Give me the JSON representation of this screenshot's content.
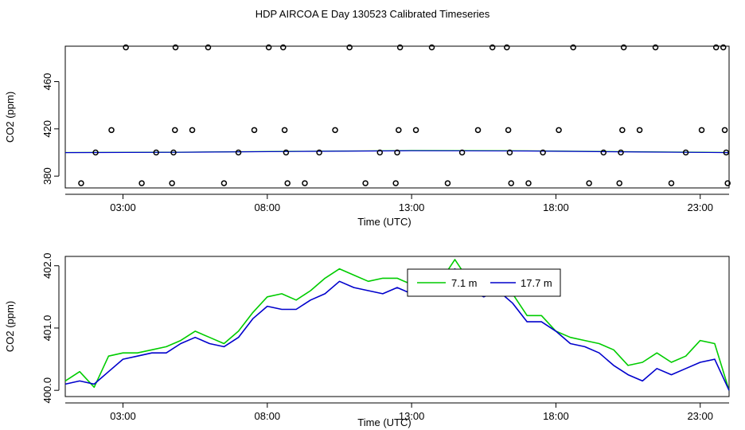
{
  "page": {
    "title": "HDP AIRCOA E  Day 130523  Calibrated Timeseries"
  },
  "colors": {
    "green": "#00cc00",
    "blue": "#0000cc",
    "axis": "#000000",
    "background": "#ffffff"
  },
  "chart_data": [
    {
      "type": "scatter",
      "xlabel": "Time (UTC)",
      "ylabel": "CO2 (ppm)",
      "xlim": [
        1.0,
        24.0
      ],
      "ylim": [
        370,
        490
      ],
      "xticks": [
        3,
        8,
        13,
        18,
        23
      ],
      "xtick_labels": [
        "03:00",
        "08:00",
        "13:00",
        "18:00",
        "23:00"
      ],
      "yticks": [
        380,
        420,
        460
      ],
      "ytick_labels": [
        "380",
        "420",
        "460"
      ],
      "points": [
        {
          "x": 1.55,
          "y": 374
        },
        {
          "x": 2.05,
          "y": 400
        },
        {
          "x": 2.6,
          "y": 419
        },
        {
          "x": 3.1,
          "y": 489
        },
        {
          "x": 3.65,
          "y": 374
        },
        {
          "x": 4.15,
          "y": 400
        },
        {
          "x": 4.7,
          "y": 374
        },
        {
          "x": 4.75,
          "y": 400
        },
        {
          "x": 4.8,
          "y": 419
        },
        {
          "x": 4.82,
          "y": 489
        },
        {
          "x": 5.4,
          "y": 419
        },
        {
          "x": 5.95,
          "y": 489
        },
        {
          "x": 6.5,
          "y": 374
        },
        {
          "x": 7.0,
          "y": 400
        },
        {
          "x": 7.55,
          "y": 419
        },
        {
          "x": 8.05,
          "y": 489
        },
        {
          "x": 8.55,
          "y": 489
        },
        {
          "x": 8.6,
          "y": 419
        },
        {
          "x": 8.65,
          "y": 400
        },
        {
          "x": 8.7,
          "y": 374
        },
        {
          "x": 9.3,
          "y": 374
        },
        {
          "x": 9.8,
          "y": 400
        },
        {
          "x": 10.35,
          "y": 419
        },
        {
          "x": 10.85,
          "y": 489
        },
        {
          "x": 11.4,
          "y": 374
        },
        {
          "x": 11.9,
          "y": 400
        },
        {
          "x": 12.45,
          "y": 374
        },
        {
          "x": 12.5,
          "y": 400
        },
        {
          "x": 12.55,
          "y": 419
        },
        {
          "x": 12.6,
          "y": 489
        },
        {
          "x": 13.15,
          "y": 419
        },
        {
          "x": 13.7,
          "y": 489
        },
        {
          "x": 14.25,
          "y": 374
        },
        {
          "x": 14.75,
          "y": 400
        },
        {
          "x": 15.3,
          "y": 419
        },
        {
          "x": 15.8,
          "y": 489
        },
        {
          "x": 16.3,
          "y": 489
        },
        {
          "x": 16.35,
          "y": 419
        },
        {
          "x": 16.4,
          "y": 400
        },
        {
          "x": 16.45,
          "y": 374
        },
        {
          "x": 17.05,
          "y": 374
        },
        {
          "x": 17.55,
          "y": 400
        },
        {
          "x": 18.1,
          "y": 419
        },
        {
          "x": 18.6,
          "y": 489
        },
        {
          "x": 19.15,
          "y": 374
        },
        {
          "x": 19.65,
          "y": 400
        },
        {
          "x": 20.2,
          "y": 374
        },
        {
          "x": 20.25,
          "y": 400
        },
        {
          "x": 20.3,
          "y": 419
        },
        {
          "x": 20.35,
          "y": 489
        },
        {
          "x": 20.9,
          "y": 419
        },
        {
          "x": 21.45,
          "y": 489
        },
        {
          "x": 22.0,
          "y": 374
        },
        {
          "x": 22.5,
          "y": 400
        },
        {
          "x": 23.05,
          "y": 419
        },
        {
          "x": 23.55,
          "y": 489
        },
        {
          "x": 23.8,
          "y": 489
        },
        {
          "x": 23.85,
          "y": 419
        },
        {
          "x": 23.9,
          "y": 400
        },
        {
          "x": 23.95,
          "y": 374
        }
      ],
      "line_series": [
        {
          "color": "#00cc00",
          "x": [
            1.0,
            5.0,
            9.0,
            13.0,
            17.0,
            21.0,
            24.0
          ],
          "y": [
            400.0,
            400.3,
            401.0,
            401.7,
            401.5,
            400.6,
            400.0
          ]
        },
        {
          "color": "#0000cc",
          "x": [
            1.0,
            5.0,
            9.0,
            13.0,
            17.0,
            21.0,
            24.0
          ],
          "y": [
            399.9,
            400.2,
            400.9,
            401.5,
            401.3,
            400.4,
            399.9
          ]
        }
      ]
    },
    {
      "type": "line",
      "xlabel": "Time (UTC)",
      "ylabel": "CO2 (ppm)",
      "xlim": [
        1.0,
        24.0
      ],
      "ylim": [
        399.9,
        402.15
      ],
      "xticks": [
        3,
        8,
        13,
        18,
        23
      ],
      "xtick_labels": [
        "03:00",
        "08:00",
        "13:00",
        "18:00",
        "23:00"
      ],
      "yticks": [
        400.0,
        401.0,
        402.0
      ],
      "ytick_labels": [
        "400.0",
        "401.0",
        "402.0"
      ],
      "legend": {
        "position": "top-center",
        "entries": [
          {
            "name": "7.1 m",
            "color": "#00cc00"
          },
          {
            "name": "17.7 m",
            "color": "#0000cc"
          }
        ]
      },
      "series": [
        {
          "name": "7.1 m",
          "color": "#00cc00",
          "x": [
            1.0,
            1.5,
            2.0,
            2.5,
            3.0,
            3.5,
            4.0,
            4.5,
            5.0,
            5.5,
            6.0,
            6.5,
            7.0,
            7.5,
            8.0,
            8.5,
            9.0,
            9.5,
            10.0,
            10.5,
            11.0,
            11.5,
            12.0,
            12.5,
            13.0,
            13.5,
            14.0,
            14.5,
            15.0,
            15.5,
            16.0,
            16.5,
            17.0,
            17.5,
            18.0,
            18.5,
            19.0,
            19.5,
            20.0,
            20.5,
            21.0,
            21.5,
            22.0,
            22.5,
            23.0,
            23.5,
            24.0
          ],
          "y": [
            400.15,
            400.3,
            400.05,
            400.55,
            400.6,
            400.6,
            400.65,
            400.7,
            400.8,
            400.95,
            400.85,
            400.75,
            400.95,
            401.25,
            401.5,
            401.55,
            401.45,
            401.6,
            401.8,
            401.95,
            401.85,
            401.75,
            401.8,
            401.8,
            401.7,
            401.9,
            401.75,
            402.1,
            401.75,
            401.65,
            401.7,
            401.55,
            401.2,
            401.2,
            400.95,
            400.85,
            400.8,
            400.75,
            400.65,
            400.4,
            400.45,
            400.6,
            400.45,
            400.55,
            400.8,
            400.75,
            400.0
          ]
        },
        {
          "name": "17.7 m",
          "color": "#0000cc",
          "x": [
            1.0,
            1.5,
            2.0,
            2.5,
            3.0,
            3.5,
            4.0,
            4.5,
            5.0,
            5.5,
            6.0,
            6.5,
            7.0,
            7.5,
            8.0,
            8.5,
            9.0,
            9.5,
            10.0,
            10.5,
            11.0,
            11.5,
            12.0,
            12.5,
            13.0,
            13.5,
            14.0,
            14.5,
            15.0,
            15.5,
            16.0,
            16.5,
            17.0,
            17.5,
            18.0,
            18.5,
            19.0,
            19.5,
            20.0,
            20.5,
            21.0,
            21.5,
            22.0,
            22.5,
            23.0,
            23.5,
            24.0
          ],
          "y": [
            400.1,
            400.15,
            400.1,
            400.3,
            400.5,
            400.55,
            400.6,
            400.6,
            400.75,
            400.85,
            400.75,
            400.7,
            400.85,
            401.15,
            401.35,
            401.3,
            401.3,
            401.45,
            401.55,
            401.75,
            401.65,
            401.6,
            401.55,
            401.65,
            401.55,
            401.75,
            401.65,
            401.95,
            401.6,
            401.5,
            401.6,
            401.4,
            401.1,
            401.1,
            400.95,
            400.75,
            400.7,
            400.6,
            400.4,
            400.25,
            400.15,
            400.35,
            400.25,
            400.35,
            400.45,
            400.5,
            400.0
          ]
        }
      ]
    }
  ]
}
